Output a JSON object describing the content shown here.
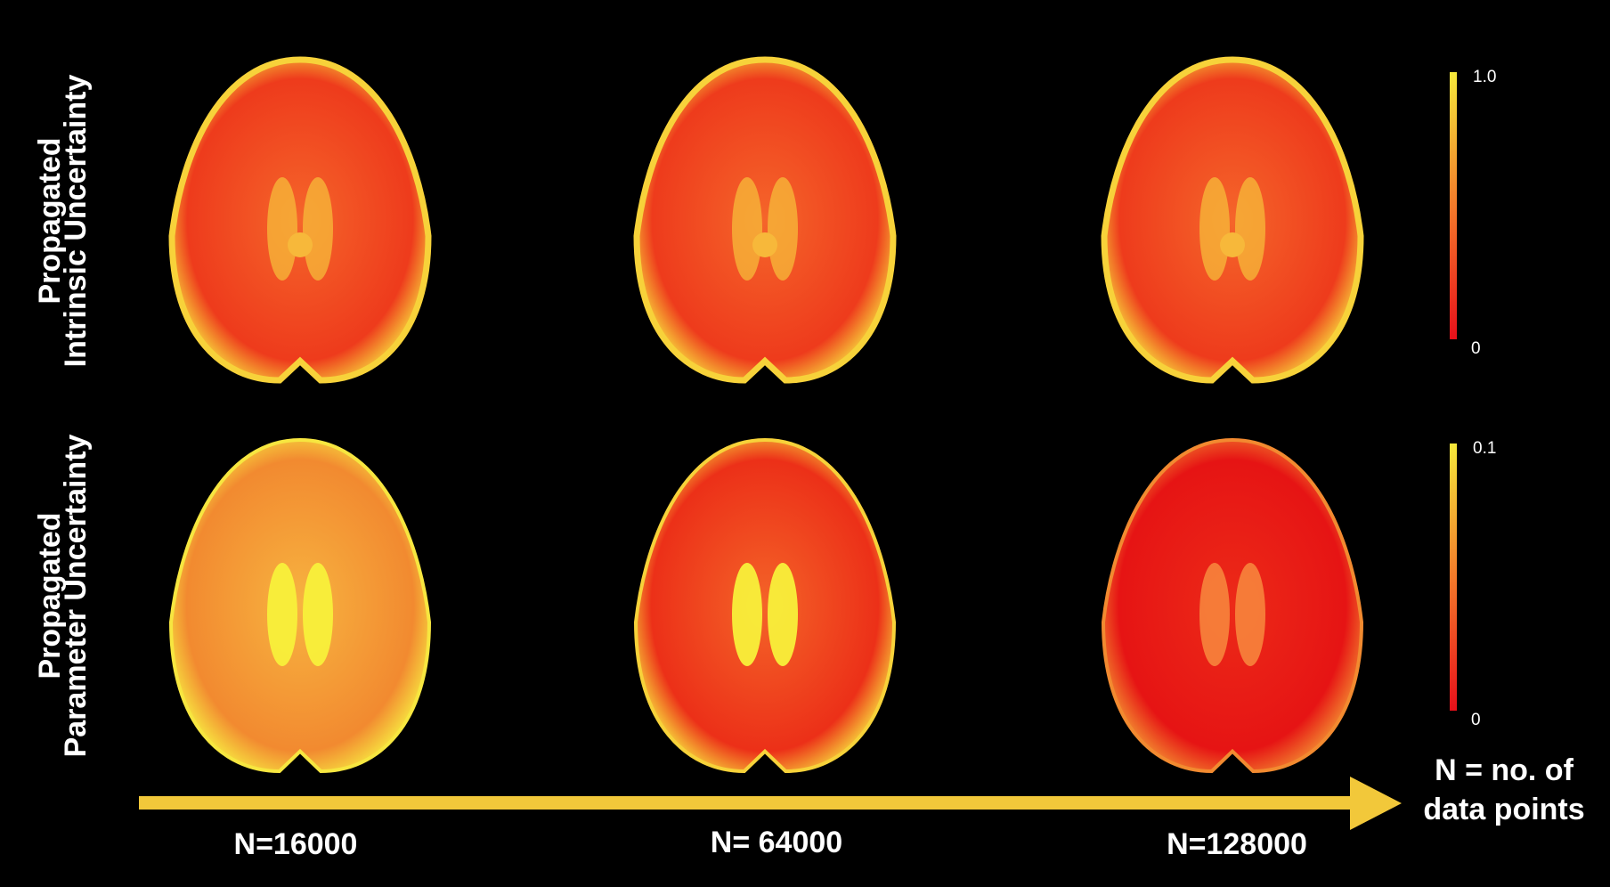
{
  "rows": [
    {
      "label": [
        "Propagated",
        "Intrinsic Uncertainty"
      ],
      "colorbar": {
        "max": "1.0",
        "min": "0"
      }
    },
    {
      "label": [
        "Propagated",
        "Parameter Uncertainty"
      ],
      "colorbar": {
        "max": "0.1",
        "min": "0"
      }
    }
  ],
  "columns": [
    "N=16000",
    "N= 64000",
    "N=128000"
  ],
  "arrow_label": [
    "N = no. of",
    "data points"
  ]
}
